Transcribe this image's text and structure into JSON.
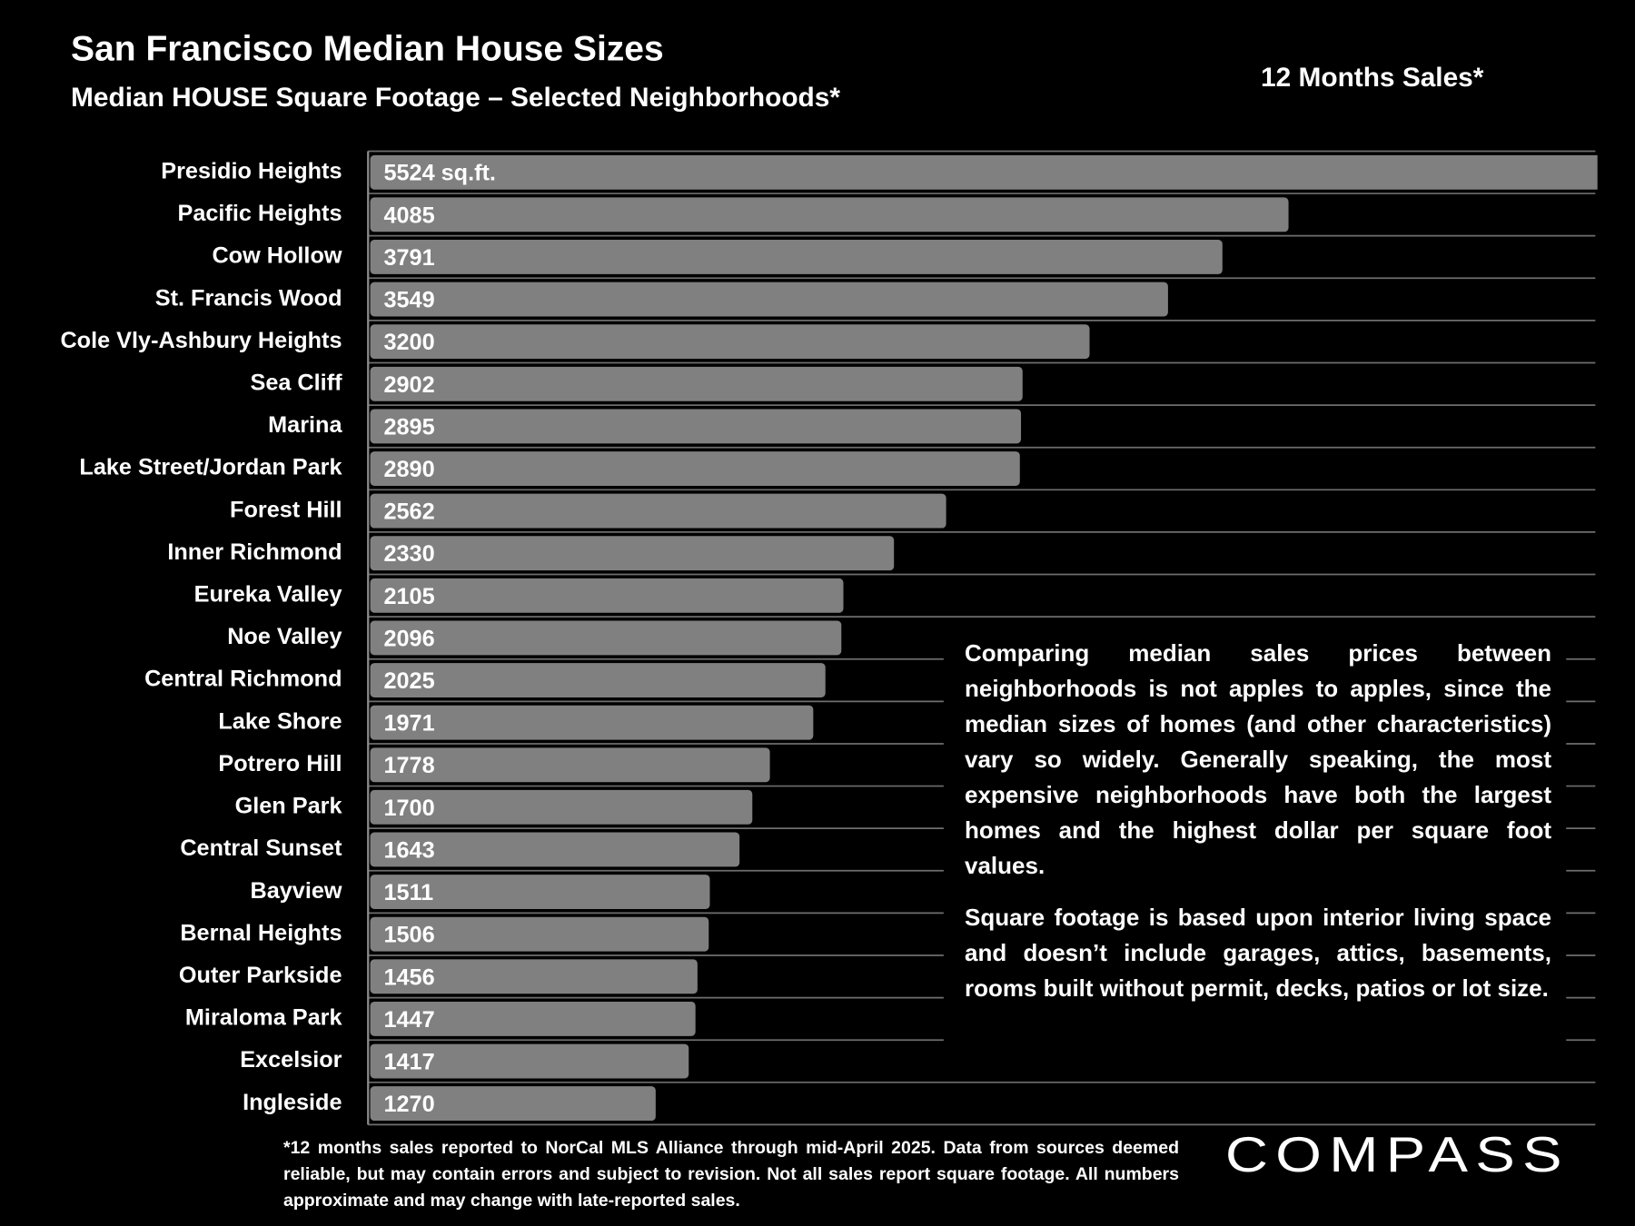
{
  "chart_data": {
    "type": "hbar",
    "title": "San Francisco Median House Sizes",
    "subtitle": "Median HOUSE Square Footage – Selected Neighborhoods*",
    "period_label": "12 Months Sales*",
    "categories": [
      "Presidio Heights",
      "Pacific Heights",
      "Cow Hollow",
      "St. Francis Wood",
      "Cole Vly-Ashbury Heights",
      "Sea Cliff",
      "Marina",
      "Lake Street/Jordan Park",
      "Forest Hill",
      "Inner Richmond",
      "Eureka Valley",
      "Noe Valley",
      "Central Richmond",
      "Lake Shore",
      "Potrero Hill",
      "Glen Park",
      "Central Sunset",
      "Bayview",
      "Bernal Heights",
      "Outer Parkside",
      "Miraloma Park",
      "Excelsior",
      "Ingleside"
    ],
    "values": [
      5524,
      4085,
      3791,
      3549,
      3200,
      2902,
      2895,
      2890,
      2562,
      2330,
      2105,
      2096,
      2025,
      1971,
      1778,
      1700,
      1643,
      1511,
      1506,
      1456,
      1447,
      1417,
      1270
    ],
    "value_labels": [
      "5524 sq.ft.",
      "4085",
      "3791",
      "3549",
      "3200",
      "2902",
      "2895",
      "2890",
      "2562",
      "2330",
      "2105",
      "2096",
      "2025",
      "1971",
      "1778",
      "1700",
      "1643",
      "1511",
      "1506",
      "1456",
      "1447",
      "1417",
      "1270"
    ],
    "color": "#808080",
    "xlim": [
      0,
      5450
    ],
    "notes": [
      "Comparing median sales prices between neighborhoods is not apples to apples, since the median sizes of homes (and other characteristics) vary so widely. Generally speaking, the most expensive neighborhoods have both the largest homes and the highest dollar per square foot values.",
      "Square footage is based upon interior living space and doesn’t include garages, attics, basements, rooms built without permit, decks, patios or lot size."
    ],
    "footnote": "*12 months sales reported to NorCal MLS Alliance through mid-April 2025. Data from sources deemed reliable, but may contain errors and subject to revision. Not all sales report square footage. All numbers approximate and may change with late-reported sales.",
    "logo": "COMPASS"
  }
}
